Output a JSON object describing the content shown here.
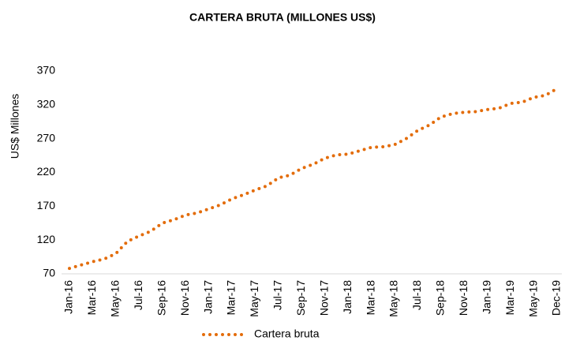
{
  "chart_data": {
    "type": "line",
    "title": "CARTERA BRUTA (MILLONES US$)",
    "y_label": "US$ Millones",
    "categories": [
      "Jan-16",
      null,
      "Mar-16",
      null,
      "May-16",
      null,
      "Jul-16",
      null,
      "Sep-16",
      null,
      "Nov-16",
      null,
      "Jan-17",
      null,
      "Mar-17",
      null,
      "May-17",
      null,
      "Jul-17",
      null,
      "Sep-17",
      null,
      "Nov-17",
      null,
      "Jan-18",
      null,
      "Mar-18",
      null,
      "May-18",
      null,
      "Jul-18",
      null,
      "Sep-18",
      null,
      "Nov-18",
      null,
      "Jan-19",
      null,
      "Mar-19",
      null,
      "May-19",
      null,
      "Dec-19"
    ],
    "series": [
      {
        "name": "Cartera bruta",
        "color": "#e36c0a",
        "values": [
          78,
          83,
          88,
          92,
          100,
          118,
          126,
          133,
          145,
          150,
          157,
          160,
          166,
          172,
          181,
          187,
          194,
          200,
          212,
          216,
          226,
          232,
          241,
          246,
          247,
          252,
          257,
          258,
          261,
          270,
          282,
          290,
          302,
          307,
          309,
          310,
          313,
          315,
          322,
          324,
          331,
          334,
          344
        ]
      }
    ],
    "ylim": [
      70,
      370
    ],
    "yticks": [
      70,
      120,
      170,
      220,
      270,
      320,
      370
    ],
    "grid": false,
    "legend": "bottom"
  }
}
